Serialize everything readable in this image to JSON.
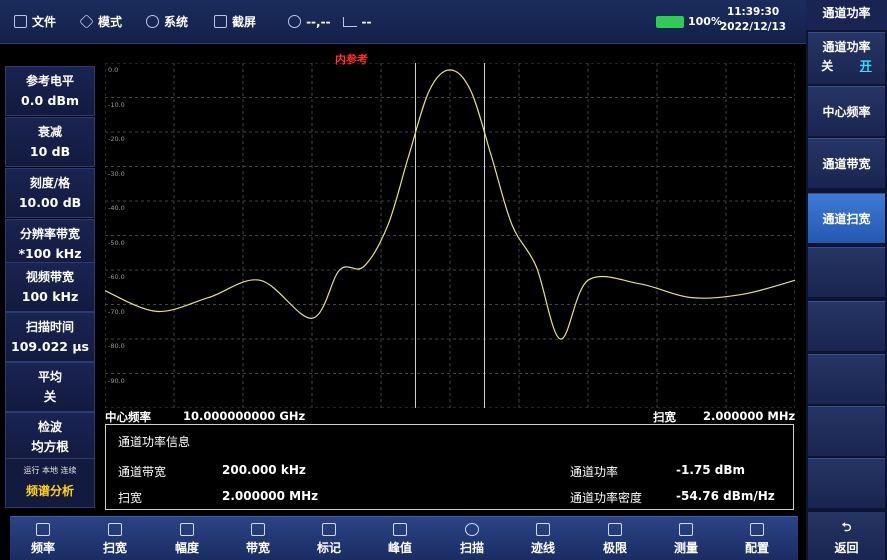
{
  "topbar": {
    "menu": [
      {
        "label": "文件",
        "icon": "file-icon"
      },
      {
        "label": "模式",
        "icon": "mode-icon"
      },
      {
        "label": "系统",
        "icon": "gear-icon"
      },
      {
        "label": "截屏",
        "icon": "camera-icon"
      }
    ],
    "gps_readout": "--,--",
    "signal_readout": "--",
    "battery": "100%",
    "time": "11:39:30",
    "date": "2022/12/13"
  },
  "left_params": [
    {
      "label": "参考电平",
      "value": "0.0 dBm"
    },
    {
      "label": "衰减",
      "value": "10 dB"
    },
    {
      "label": "刻度/格",
      "value": "10.00 dB"
    },
    {
      "label": "分辨率带宽",
      "value": "*100 kHz"
    },
    {
      "label": "视频带宽",
      "value": "100 kHz"
    },
    {
      "label": "扫描时间",
      "value": "109.022 µs"
    },
    {
      "label": "平均",
      "value": "关"
    },
    {
      "label": "检波",
      "value": "均方根"
    }
  ],
  "status": {
    "run": "运行 本地 连续",
    "mode": "频谱分析"
  },
  "plot": {
    "reference_label": "内参考",
    "y_ticks": [
      "0.0",
      "-10.0",
      "-20.0",
      "-30.0",
      "-40.0",
      "-50.0",
      "-60.0",
      "-70.0",
      "-80.0",
      "-90.0"
    ],
    "trace_color": "#e8e080",
    "grid_color": "#444444",
    "channel_edge_color": "#d0d0d0"
  },
  "chart_data": {
    "type": "line",
    "x_range": [
      9.999,
      10.001
    ],
    "x_unit": "GHz",
    "ylim": [
      -100,
      0
    ],
    "y_unit": "dBm",
    "channel_bandwidth_khz": 200,
    "x": [
      9.999,
      9.99915,
      9.9993,
      9.99945,
      9.9996,
      9.99968,
      9.99975,
      9.99982,
      9.99988,
      9.99994,
      10.0,
      10.00006,
      10.00012,
      10.00018,
      10.00025,
      10.00032,
      10.0004,
      10.00055,
      10.0007,
      10.00085,
      10.001
    ],
    "y": [
      -66,
      -72,
      -68,
      -63,
      -74,
      -60,
      -59,
      -47,
      -27,
      -8,
      -2,
      -8,
      -27,
      -47,
      -59,
      -80,
      -63,
      -64,
      -68,
      -67,
      -63
    ]
  },
  "center_row": {
    "center_label": "中心频率",
    "center_value": "10.000000000 GHz",
    "span_label": "扫宽",
    "span_value": "2.000000 MHz"
  },
  "channel_info": {
    "title": "通道功率信息",
    "bw_label": "通道带宽",
    "bw_value": "200.000 kHz",
    "span_label": "扫宽",
    "span_value": "2.000000 MHz",
    "power_label": "通道功率",
    "power_value": "-1.75 dBm",
    "density_label": "通道功率密度",
    "density_value": "-54.76 dBm/Hz"
  },
  "bottombar": [
    {
      "label": "频率",
      "icon": "frequency-icon"
    },
    {
      "label": "扫宽",
      "icon": "span-icon"
    },
    {
      "label": "幅度",
      "icon": "amplitude-icon"
    },
    {
      "label": "带宽",
      "icon": "bandwidth-icon"
    },
    {
      "label": "标记",
      "icon": "marker-flag-icon"
    },
    {
      "label": "峰值",
      "icon": "peak-icon"
    },
    {
      "label": "扫描",
      "icon": "sweep-icon"
    },
    {
      "label": "迹线",
      "icon": "trace-icon"
    },
    {
      "label": "极限",
      "icon": "limit-warning-icon"
    },
    {
      "label": "测量",
      "icon": "measure-icon"
    },
    {
      "label": "配置",
      "icon": "config-sliders-icon"
    }
  ],
  "softkeys": {
    "title": "通道功率",
    "toggle_label": "通道功率",
    "toggle_off": "关",
    "toggle_on": "开",
    "center_freq": "中心频率",
    "channel_bw": "通道带宽",
    "channel_sweep": "通道扫宽",
    "back": "返回"
  }
}
